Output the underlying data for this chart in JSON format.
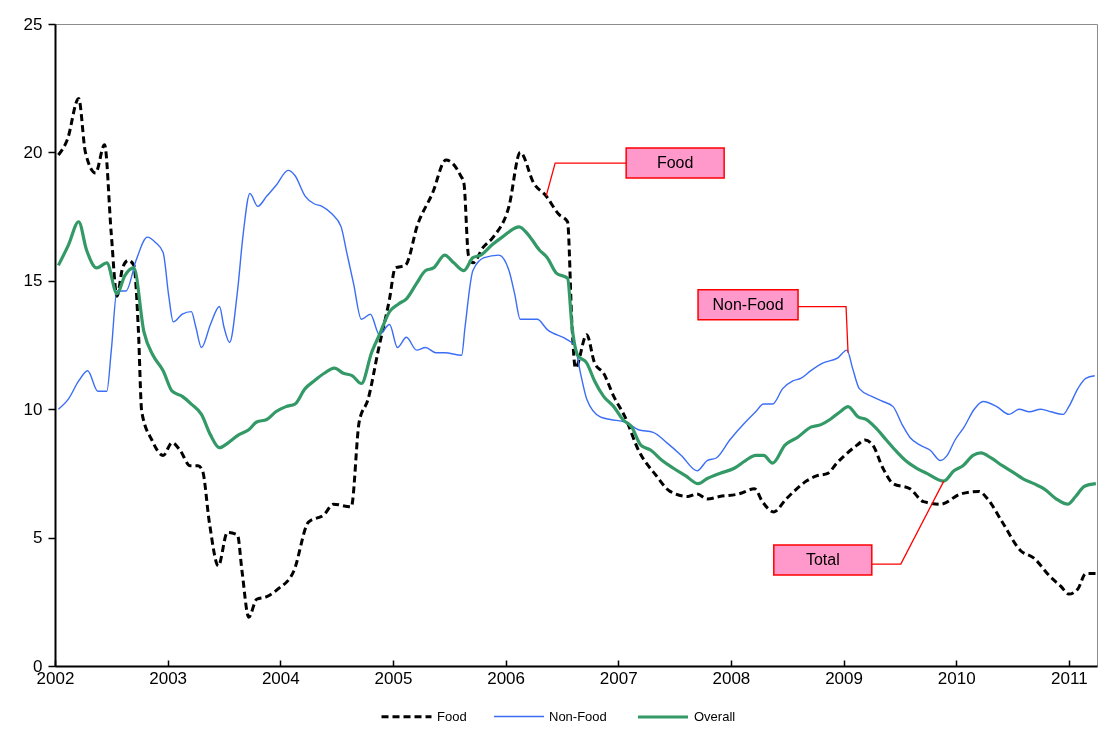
{
  "chart_data": {
    "type": "line",
    "xlim": [
      2002,
      2011.25
    ],
    "ylim": [
      0,
      25
    ],
    "xticks": [
      2002,
      2003,
      2004,
      2005,
      2006,
      2007,
      2008,
      2009,
      2010,
      2011
    ],
    "yticks": [
      0,
      5,
      10,
      15,
      20,
      25
    ],
    "legend": "bottom",
    "series": [
      {
        "name": "Food",
        "color": "#000000",
        "line_style": "dashed",
        "x": [
          2002.03,
          2002.11,
          2002.21,
          2002.27,
          2002.36,
          2002.44,
          2002.5,
          2002.55,
          2002.6,
          2002.65,
          2002.7,
          2002.74,
          2002.77,
          2002.86,
          2002.96,
          2003.04,
          2003.11,
          2003.2,
          2003.27,
          2003.31,
          2003.37,
          2003.45,
          2003.53,
          2003.62,
          2003.66,
          2003.72,
          2003.79,
          2003.88,
          2003.98,
          2004.12,
          2004.25,
          2004.39,
          2004.47,
          2004.63,
          2004.7,
          2004.78,
          2004.87,
          2004.97,
          2005.02,
          2005.11,
          2005.22,
          2005.35,
          2005.47,
          2005.6,
          2005.63,
          2005.67,
          2005.71,
          2005.8,
          2005.89,
          2006.03,
          2006.13,
          2006.25,
          2006.36,
          2006.47,
          2006.55,
          2006.59,
          2006.62,
          2006.72,
          2006.79,
          2006.87,
          2006.96,
          2007.06,
          2007.18,
          2007.34,
          2007.46,
          2007.62,
          2007.7,
          2007.79,
          2007.9,
          2008.07,
          2008.21,
          2008.28,
          2008.38,
          2008.49,
          2008.56,
          2008.67,
          2008.76,
          2008.86,
          2008.94,
          2009.01,
          2009.12,
          2009.19,
          2009.26,
          2009.35,
          2009.44,
          2009.59,
          2009.71,
          2009.86,
          2010.04,
          2010.2,
          2010.28,
          2010.41,
          2010.57,
          2010.69,
          2010.83,
          2010.93,
          2011.0,
          2011.08,
          2011.15,
          2011.24
        ],
        "values": [
          19.9,
          20.5,
          22.1,
          20.0,
          19.2,
          20.3,
          16.8,
          14.4,
          15.5,
          15.8,
          15.6,
          13.1,
          9.9,
          8.8,
          8.2,
          8.7,
          8.4,
          7.8,
          7.8,
          7.6,
          5.6,
          3.9,
          5.2,
          5.1,
          3.7,
          1.9,
          2.6,
          2.7,
          3.0,
          3.7,
          5.6,
          5.9,
          6.3,
          6.2,
          9.5,
          10.4,
          12.3,
          14.3,
          15.5,
          15.6,
          17.2,
          18.4,
          19.7,
          19.1,
          18.8,
          16.0,
          15.7,
          16.3,
          16.7,
          17.9,
          20.0,
          18.8,
          18.3,
          17.6,
          17.3,
          13.2,
          11.6,
          12.9,
          11.8,
          11.4,
          10.5,
          9.7,
          8.4,
          7.4,
          6.8,
          6.6,
          6.7,
          6.5,
          6.6,
          6.7,
          6.9,
          6.4,
          6.0,
          6.5,
          6.8,
          7.2,
          7.4,
          7.5,
          7.9,
          8.2,
          8.6,
          8.8,
          8.6,
          7.7,
          7.1,
          6.9,
          6.4,
          6.3,
          6.7,
          6.8,
          6.5,
          5.6,
          4.5,
          4.2,
          3.5,
          3.1,
          2.8,
          3.0,
          3.6,
          3.6
        ]
      },
      {
        "name": "Non-Food",
        "color": "#3b6ef5",
        "line_style": "solid",
        "x": [
          2002.03,
          2002.12,
          2002.21,
          2002.29,
          2002.38,
          2002.46,
          2002.5,
          2002.55,
          2002.63,
          2002.72,
          2002.82,
          2002.89,
          2002.96,
          2003.01,
          2003.05,
          2003.13,
          2003.21,
          2003.25,
          2003.3,
          2003.38,
          2003.46,
          2003.5,
          2003.55,
          2003.62,
          2003.67,
          2003.73,
          2003.8,
          2003.88,
          2003.96,
          2004.07,
          2004.13,
          2004.22,
          2004.3,
          2004.37,
          2004.46,
          2004.54,
          2004.59,
          2004.65,
          2004.72,
          2004.8,
          2004.88,
          2004.97,
          2005.04,
          2005.12,
          2005.21,
          2005.29,
          2005.38,
          2005.46,
          2005.61,
          2005.64,
          2005.71,
          2005.81,
          2005.94,
          2006.03,
          2006.08,
          2006.13,
          2006.28,
          2006.37,
          2006.55,
          2006.61,
          2006.67,
          2006.72,
          2006.84,
          2006.93,
          2007.06,
          2007.18,
          2007.31,
          2007.43,
          2007.56,
          2007.7,
          2007.79,
          2007.87,
          2007.99,
          2008.13,
          2008.22,
          2008.29,
          2008.37,
          2008.46,
          2008.55,
          2008.62,
          2008.71,
          2008.82,
          2008.95,
          2009.03,
          2009.08,
          2009.14,
          2009.25,
          2009.35,
          2009.44,
          2009.52,
          2009.59,
          2009.68,
          2009.77,
          2009.86,
          2009.92,
          2009.99,
          2010.07,
          2010.16,
          2010.24,
          2010.36,
          2010.47,
          2010.56,
          2010.65,
          2010.75,
          2010.84,
          2010.95,
          2011.0,
          2011.08,
          2011.15,
          2011.23
        ],
        "values": [
          10.0,
          10.4,
          11.1,
          11.5,
          10.7,
          10.7,
          12.3,
          14.6,
          14.6,
          15.8,
          16.7,
          16.5,
          16.1,
          14.4,
          13.4,
          13.7,
          13.8,
          13.2,
          12.4,
          13.3,
          14.0,
          13.2,
          12.6,
          14.6,
          16.8,
          18.4,
          17.9,
          18.3,
          18.7,
          19.3,
          19.1,
          18.3,
          18.0,
          17.9,
          17.6,
          17.1,
          16.1,
          14.9,
          13.5,
          13.7,
          12.9,
          13.3,
          12.4,
          12.8,
          12.3,
          12.4,
          12.2,
          12.2,
          12.1,
          13.2,
          15.4,
          15.9,
          16.0,
          15.4,
          14.5,
          13.5,
          13.5,
          13.1,
          12.7,
          12.5,
          11.3,
          10.4,
          9.7,
          9.6,
          9.5,
          9.2,
          9.1,
          8.7,
          8.2,
          7.6,
          8.0,
          8.1,
          8.8,
          9.5,
          9.9,
          10.2,
          10.2,
          10.8,
          11.1,
          11.2,
          11.5,
          11.8,
          12.0,
          12.3,
          11.6,
          10.8,
          10.5,
          10.3,
          10.1,
          9.4,
          8.9,
          8.6,
          8.4,
          8.0,
          8.2,
          8.8,
          9.3,
          10.0,
          10.3,
          10.1,
          9.8,
          10.0,
          9.9,
          10.0,
          9.9,
          9.8,
          10.1,
          10.8,
          11.2,
          11.3
        ]
      },
      {
        "name": "Overall",
        "color": "#339966",
        "line_style": "solid",
        "x": [
          2002.03,
          2002.12,
          2002.21,
          2002.28,
          2002.37,
          2002.46,
          2002.55,
          2002.62,
          2002.7,
          2002.79,
          2002.87,
          2002.96,
          2003.04,
          2003.13,
          2003.21,
          2003.3,
          2003.38,
          2003.46,
          2003.54,
          2003.63,
          2003.72,
          2003.79,
          2003.88,
          2003.96,
          2004.05,
          2004.13,
          2004.22,
          2004.3,
          2004.39,
          2004.48,
          2004.56,
          2004.64,
          2004.72,
          2004.81,
          2004.88,
          2004.97,
          2005.05,
          2005.12,
          2005.21,
          2005.29,
          2005.36,
          2005.46,
          2005.54,
          2005.63,
          2005.71,
          2005.78,
          2005.88,
          2005.97,
          2006.12,
          2006.2,
          2006.3,
          2006.37,
          2006.45,
          2006.55,
          2006.59,
          2006.64,
          2006.72,
          2006.79,
          2006.87,
          2006.96,
          2007.04,
          2007.12,
          2007.2,
          2007.29,
          2007.39,
          2007.49,
          2007.6,
          2007.71,
          2007.79,
          2007.9,
          2008.03,
          2008.13,
          2008.22,
          2008.29,
          2008.37,
          2008.48,
          2008.59,
          2008.71,
          2008.8,
          2008.88,
          2008.97,
          2009.04,
          2009.13,
          2009.2,
          2009.28,
          2009.38,
          2009.46,
          2009.55,
          2009.65,
          2009.74,
          2009.89,
          2009.98,
          2010.06,
          2010.15,
          2010.22,
          2010.31,
          2010.41,
          2010.52,
          2010.59,
          2010.69,
          2010.78,
          2010.89,
          2010.99,
          2011.06,
          2011.14,
          2011.24
        ],
        "values": [
          15.6,
          16.4,
          17.3,
          16.2,
          15.5,
          15.7,
          14.5,
          15.2,
          15.5,
          13.0,
          12.1,
          11.5,
          10.7,
          10.5,
          10.2,
          9.8,
          9.0,
          8.5,
          8.7,
          9.0,
          9.2,
          9.5,
          9.6,
          9.9,
          10.1,
          10.2,
          10.8,
          11.1,
          11.4,
          11.6,
          11.4,
          11.3,
          11.0,
          12.2,
          12.9,
          13.8,
          14.1,
          14.3,
          14.9,
          15.4,
          15.5,
          16.0,
          15.7,
          15.4,
          15.9,
          16.0,
          16.4,
          16.7,
          17.1,
          16.8,
          16.2,
          15.9,
          15.3,
          15.1,
          13.2,
          12.1,
          11.8,
          11.1,
          10.5,
          10.1,
          9.6,
          9.3,
          8.6,
          8.4,
          8.0,
          7.7,
          7.4,
          7.1,
          7.3,
          7.5,
          7.7,
          8.0,
          8.2,
          8.2,
          7.9,
          8.6,
          8.9,
          9.3,
          9.4,
          9.6,
          9.9,
          10.1,
          9.7,
          9.6,
          9.3,
          8.8,
          8.4,
          8.0,
          7.7,
          7.5,
          7.2,
          7.6,
          7.8,
          8.2,
          8.3,
          8.1,
          7.8,
          7.5,
          7.3,
          7.1,
          6.9,
          6.5,
          6.3,
          6.6,
          7.0,
          7.1
        ]
      }
    ],
    "annotations": [
      {
        "text": "Food",
        "x": 2006.36,
        "y": 18.3
      },
      {
        "text": "Non-Food",
        "x": 2009.04,
        "y": 12.2
      },
      {
        "text": "Total",
        "x": 2009.89,
        "y": 7.2
      }
    ]
  }
}
